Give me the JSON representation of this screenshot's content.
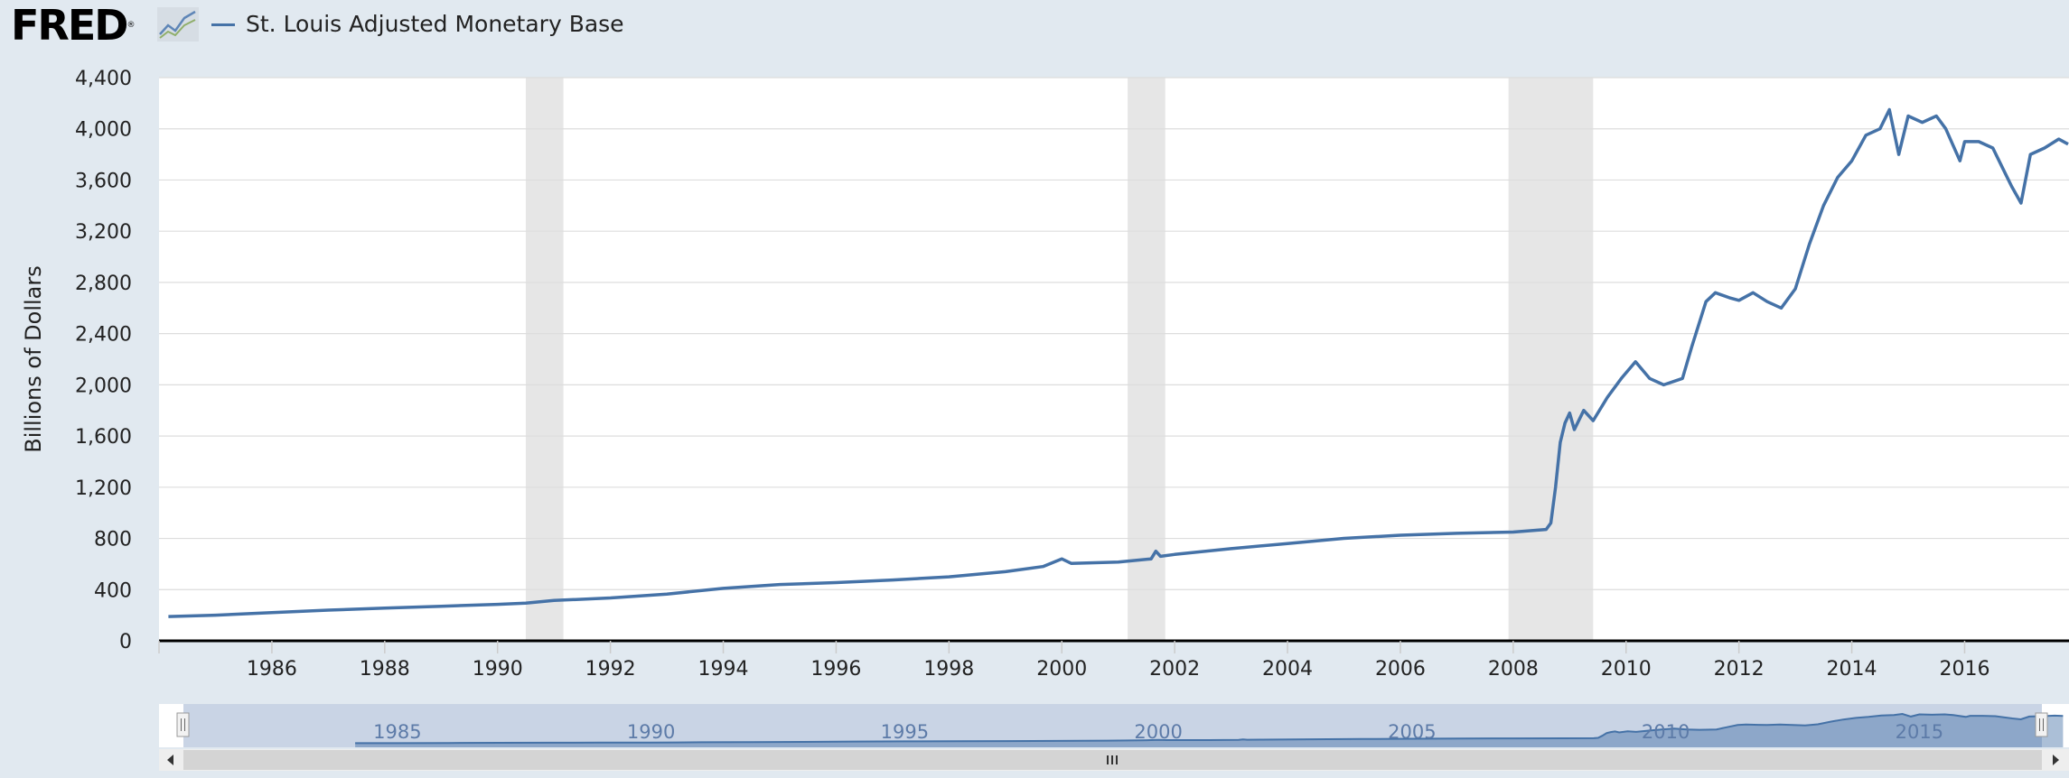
{
  "header": {
    "logo_text": "FRED",
    "logo_reg": "®",
    "logo_icon": "fred-graph-icon"
  },
  "colors": {
    "series": "#4572a7",
    "recession": "#e6e6e6",
    "background": "#e1e9f0",
    "plot": "#ffffff",
    "gridline": "#dddddd",
    "navigator_fill": "#c0cde0",
    "navigator_track": "#d4d4d4"
  },
  "navigator": {
    "tick_labels": [
      "1985",
      "1990",
      "1995",
      "2000",
      "2005",
      "2010",
      "2015"
    ],
    "scroll_left_icon": "arrow-left-icon",
    "scroll_right_icon": "arrow-right-icon",
    "scroll_grip_icon": "grip-icon"
  },
  "chart_data": {
    "type": "line",
    "title": "",
    "ylabel": "Billions of Dollars",
    "xlabel": "",
    "ylim": [
      0,
      4400
    ],
    "yticks": [
      0,
      400,
      800,
      1200,
      1600,
      2000,
      2400,
      2800,
      3200,
      3600,
      4000,
      4400
    ],
    "ytick_labels": [
      "0",
      "400",
      "800",
      "1,200",
      "1,600",
      "2,000",
      "2,400",
      "2,800",
      "3,200",
      "3,600",
      "4,000",
      "4,400"
    ],
    "xlim": [
      1984.0,
      2017.85
    ],
    "xticks": [
      "1986",
      "1988",
      "1990",
      "1992",
      "1994",
      "1996",
      "1998",
      "2000",
      "2002",
      "2004",
      "2006",
      "2008",
      "2010",
      "2012",
      "2014",
      "2016"
    ],
    "grid": true,
    "legend_position": "top-left",
    "recessions": [
      {
        "start": "1990-07-01",
        "end": "1991-03-01"
      },
      {
        "start": "2001-03-01",
        "end": "2001-11-01"
      },
      {
        "start": "2007-12-01",
        "end": "2009-06-01"
      }
    ],
    "series": [
      {
        "name": "St. Louis Adjusted Monetary Base",
        "color": "#4572a7",
        "points": [
          [
            "1984-03",
            190
          ],
          [
            "1985-01",
            200
          ],
          [
            "1986-01",
            220
          ],
          [
            "1987-01",
            240
          ],
          [
            "1988-01",
            255
          ],
          [
            "1989-01",
            270
          ],
          [
            "1990-01",
            285
          ],
          [
            "1990-07",
            295
          ],
          [
            "1991-01",
            315
          ],
          [
            "1992-01",
            335
          ],
          [
            "1993-01",
            365
          ],
          [
            "1994-01",
            410
          ],
          [
            "1995-01",
            440
          ],
          [
            "1996-01",
            455
          ],
          [
            "1997-01",
            475
          ],
          [
            "1998-01",
            500
          ],
          [
            "1999-01",
            540
          ],
          [
            "1999-09",
            580
          ],
          [
            "2000-01",
            640
          ],
          [
            "2000-03",
            605
          ],
          [
            "2001-01",
            615
          ],
          [
            "2001-08",
            640
          ],
          [
            "2001-09",
            700
          ],
          [
            "2001-10",
            660
          ],
          [
            "2002-01",
            675
          ],
          [
            "2003-01",
            720
          ],
          [
            "2004-01",
            760
          ],
          [
            "2005-01",
            800
          ],
          [
            "2006-01",
            825
          ],
          [
            "2007-01",
            840
          ],
          [
            "2008-01",
            850
          ],
          [
            "2008-08",
            870
          ],
          [
            "2008-09",
            920
          ],
          [
            "2008-10",
            1200
          ],
          [
            "2008-11",
            1550
          ],
          [
            "2008-12",
            1700
          ],
          [
            "2009-01",
            1780
          ],
          [
            "2009-02",
            1650
          ],
          [
            "2009-04",
            1800
          ],
          [
            "2009-06",
            1720
          ],
          [
            "2009-09",
            1900
          ],
          [
            "2009-12",
            2050
          ],
          [
            "2010-03",
            2180
          ],
          [
            "2010-06",
            2050
          ],
          [
            "2010-09",
            2000
          ],
          [
            "2011-01",
            2050
          ],
          [
            "2011-03",
            2300
          ],
          [
            "2011-06",
            2650
          ],
          [
            "2011-08",
            2720
          ],
          [
            "2011-11",
            2680
          ],
          [
            "2012-01",
            2660
          ],
          [
            "2012-04",
            2720
          ],
          [
            "2012-07",
            2650
          ],
          [
            "2012-10",
            2600
          ],
          [
            "2013-01",
            2750
          ],
          [
            "2013-04",
            3100
          ],
          [
            "2013-07",
            3400
          ],
          [
            "2013-10",
            3620
          ],
          [
            "2014-01",
            3750
          ],
          [
            "2014-04",
            3950
          ],
          [
            "2014-07",
            4000
          ],
          [
            "2014-09",
            4150
          ],
          [
            "2014-11",
            3800
          ],
          [
            "2015-01",
            4100
          ],
          [
            "2015-04",
            4050
          ],
          [
            "2015-07",
            4100
          ],
          [
            "2015-09",
            4000
          ],
          [
            "2015-12",
            3750
          ],
          [
            "2016-01",
            3900
          ],
          [
            "2016-04",
            3900
          ],
          [
            "2016-07",
            3850
          ],
          [
            "2016-09",
            3700
          ],
          [
            "2016-11",
            3550
          ],
          [
            "2017-01",
            3420
          ],
          [
            "2017-03",
            3800
          ],
          [
            "2017-06",
            3850
          ],
          [
            "2017-09",
            3920
          ],
          [
            "2017-11",
            3880
          ]
        ]
      }
    ]
  }
}
